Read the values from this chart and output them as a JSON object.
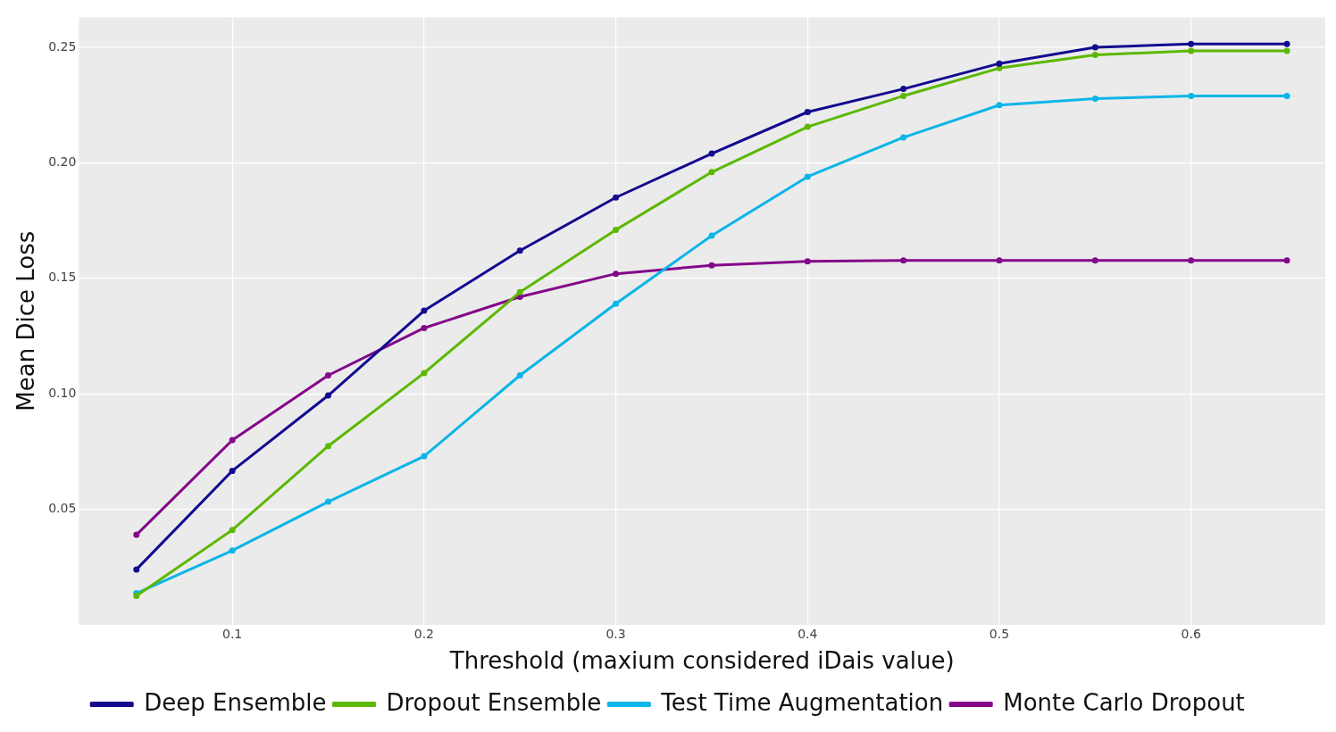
{
  "chart_data": {
    "type": "line",
    "xlabel": "Threshold (maxium considered iDais value)",
    "ylabel": "Mean Dice Loss",
    "x": [
      0.05,
      0.1,
      0.15,
      0.2,
      0.25,
      0.3,
      0.35,
      0.4,
      0.45,
      0.5,
      0.55,
      0.6,
      0.65
    ],
    "series": [
      {
        "name": "Deep Ensemble",
        "color": "#120a8f",
        "values": [
          0.024,
          0.0667,
          0.0993,
          0.136,
          0.162,
          0.185,
          0.204,
          0.222,
          0.232,
          0.243,
          0.25,
          0.2515,
          0.2515
        ]
      },
      {
        "name": "Dropout Ensemble",
        "color": "#5cb800",
        "values": [
          0.0126,
          0.0411,
          0.0774,
          0.109,
          0.144,
          0.171,
          0.196,
          0.2156,
          0.229,
          0.241,
          0.2467,
          0.2485,
          0.2485
        ]
      },
      {
        "name": "Test Time Augmentation",
        "color": "#0bb5e8",
        "values": [
          0.0137,
          0.0322,
          0.0533,
          0.073,
          0.108,
          0.139,
          0.1685,
          0.194,
          0.211,
          0.225,
          0.2278,
          0.229,
          0.229
        ]
      },
      {
        "name": "Monte Carlo Dropout",
        "color": "#84088a",
        "values": [
          0.039,
          0.08,
          0.108,
          0.1285,
          0.142,
          0.152,
          0.1556,
          0.1574,
          0.1578,
          0.1578,
          0.1578,
          0.1578,
          0.1578
        ]
      }
    ],
    "xlim": [
      0.02,
      0.67
    ],
    "xticks": [
      0.1,
      0.2,
      0.3,
      0.4,
      0.5,
      0.6
    ],
    "ylim": [
      0,
      0.263
    ],
    "yticks": [
      {
        "value": 0.05,
        "label": "0.05"
      },
      {
        "value": 0.1,
        "label": "0.10"
      },
      {
        "value": 0.15,
        "label": "0.15"
      },
      {
        "value": 0.2,
        "label": "0.20"
      },
      {
        "value": 0.25,
        "label": "0.25"
      }
    ],
    "grid": true,
    "legend": "bottom",
    "marker": "circle",
    "line_style": "solid"
  }
}
